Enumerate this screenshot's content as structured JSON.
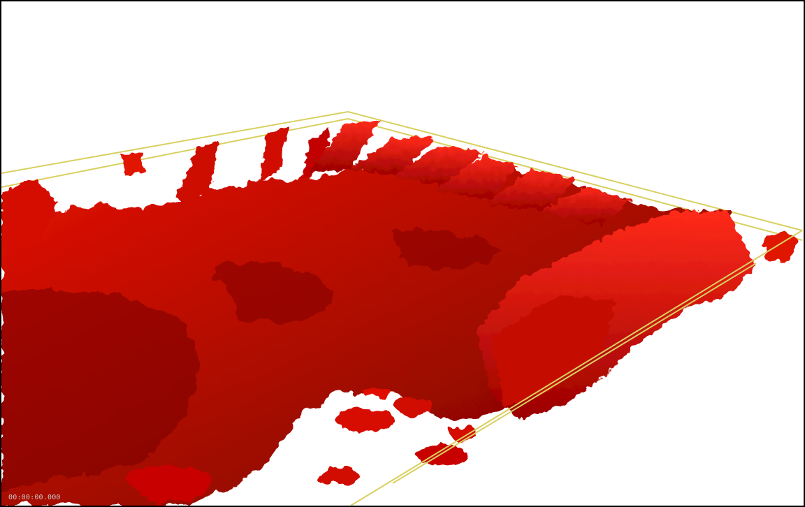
{
  "viewer": {
    "timestamp": "00:00:00.000"
  },
  "colors": {
    "surface_color": "#e00000",
    "surface_shadow": "#7a0000",
    "bounding_box_color": "#d8d060",
    "background_color": "#ffffff",
    "border_color": "#000000"
  }
}
